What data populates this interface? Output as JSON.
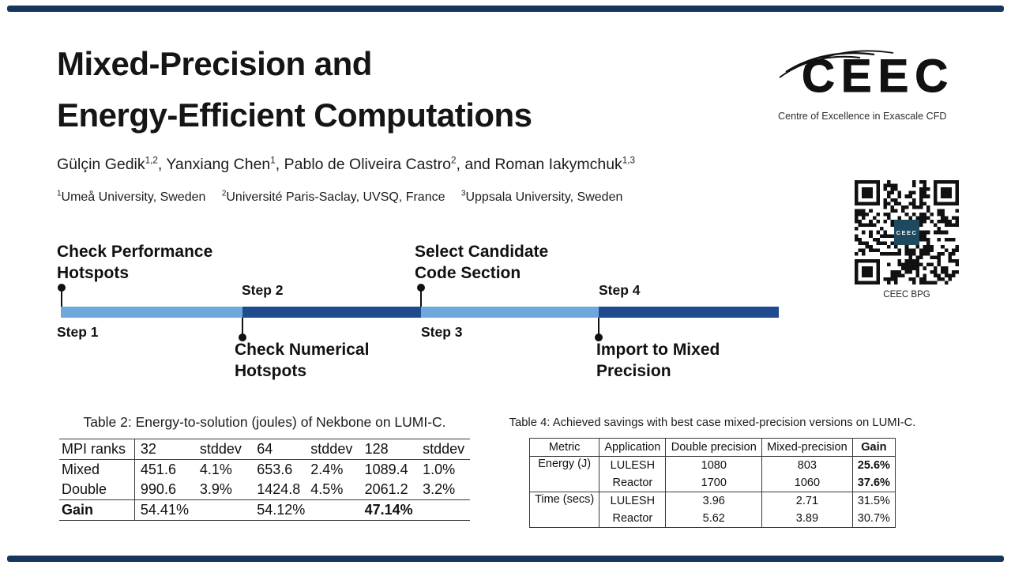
{
  "theme": {
    "bar_light_blue": "#6fa8dc",
    "bar_dark_blue": "#1f4a8e",
    "rule_navy": "#17365d",
    "qr_badge_teal": "#1d4a5f"
  },
  "header": {
    "title_line1": "Mixed-Precision and",
    "title_line2": "Energy-Efficient Computations",
    "authors": [
      {
        "name": "Gülçin Gedik",
        "sup": "1,2",
        "sep": ", "
      },
      {
        "name": "Yanxiang Chen",
        "sup": "1",
        "sep": ", "
      },
      {
        "name": "Pablo de Oliveira Castro",
        "sup": "2",
        "sep": ", and "
      },
      {
        "name": "Roman Iakymchuk",
        "sup": "1,3",
        "sep": ""
      }
    ],
    "affiliations": [
      {
        "sup": "1",
        "text": "Umeå University, Sweden"
      },
      {
        "sup": "2",
        "text": "Université Paris-Saclay, UVSQ, France"
      },
      {
        "sup": "3",
        "text": "Uppsala University, Sweden"
      }
    ]
  },
  "logo": {
    "wordmark": "CEEC",
    "tagline": "Centre of Excellence in Exascale CFD"
  },
  "qr_code": {
    "center_label": "CEEC",
    "caption": "CEEC BPG"
  },
  "timeline": {
    "steps": [
      {
        "step_label": "Step 1",
        "task_label": "Check Performance Hotspots"
      },
      {
        "step_label": "Step 2",
        "task_label": "Check Numerical Hotspots"
      },
      {
        "step_label": "Step 3",
        "task_label": "Select Candidate Code Section"
      },
      {
        "step_label": "Step 4",
        "task_label": "Import to Mixed Precision"
      }
    ],
    "segment_colors": [
      "#6fa8dc",
      "#1f4a8e",
      "#6fa8dc",
      "#1f4a8e"
    ]
  },
  "tables": {
    "table2": {
      "caption": "Table 2: Energy-to-solution (joules) of Nekbone on LUMI-C.",
      "headers": [
        "MPI ranks",
        "32",
        "stddev",
        "64",
        "stddev",
        "128",
        "stddev"
      ],
      "rows": [
        [
          "Mixed",
          "451.6",
          "4.1%",
          "653.6",
          "2.4%",
          "1089.4",
          "1.0%"
        ],
        [
          "Double",
          "990.6",
          "3.9%",
          "1424.8",
          "4.5%",
          "2061.2",
          "3.2%"
        ],
        [
          "Gain",
          "54.41%",
          "",
          "54.12%",
          "",
          "47.14%",
          ""
        ]
      ]
    },
    "table4": {
      "caption": "Table 4: Achieved savings with best case mixed-precision versions on LUMI-C.",
      "headers": [
        "Metric",
        "Application",
        "Double precision",
        "Mixed-precision",
        "Gain"
      ],
      "groups": [
        {
          "metric": "Energy (J)",
          "rows": [
            [
              "LULESH",
              "1080",
              "803",
              "25.6%"
            ],
            [
              "Reactor",
              "1700",
              "1060",
              "37.6%"
            ]
          ]
        },
        {
          "metric": "Time (secs)",
          "rows": [
            [
              "LULESH",
              "3.96",
              "2.71",
              "31.5%"
            ],
            [
              "Reactor",
              "5.62",
              "3.89",
              "30.7%"
            ]
          ]
        }
      ]
    }
  }
}
